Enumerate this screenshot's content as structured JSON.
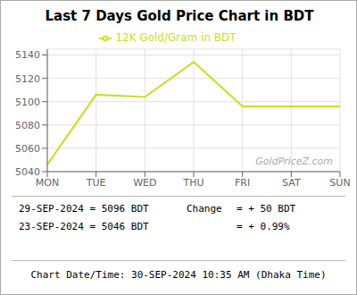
{
  "chart_data": {
    "type": "line",
    "title": "Last 7 Days Gold Price Chart in BDT",
    "categories": [
      "MON",
      "TUE",
      "WED",
      "THU",
      "FRI",
      "SAT",
      "SUN"
    ],
    "series": [
      {
        "name": "12K Gold/Gram in BDT",
        "color": "#ccdd22",
        "values": [
          5046,
          5106,
          5104,
          5134,
          5096,
          5096,
          5096
        ]
      }
    ],
    "ylim": [
      5040,
      5145
    ],
    "yticks": [
      5040,
      5060,
      5080,
      5100,
      5120,
      5140
    ],
    "grid": true,
    "legend": "top",
    "annotations": [
      "GoldPriceZ.com",
      "29-SEP-2024 = 5096 BDT",
      "23-SEP-2024 = 5046 BDT",
      "Change",
      "= + 50 BDT",
      "= + 0.99%",
      "Chart Date/Time: 30-SEP-2024 10:35 AM (Dhaka Time)"
    ]
  }
}
